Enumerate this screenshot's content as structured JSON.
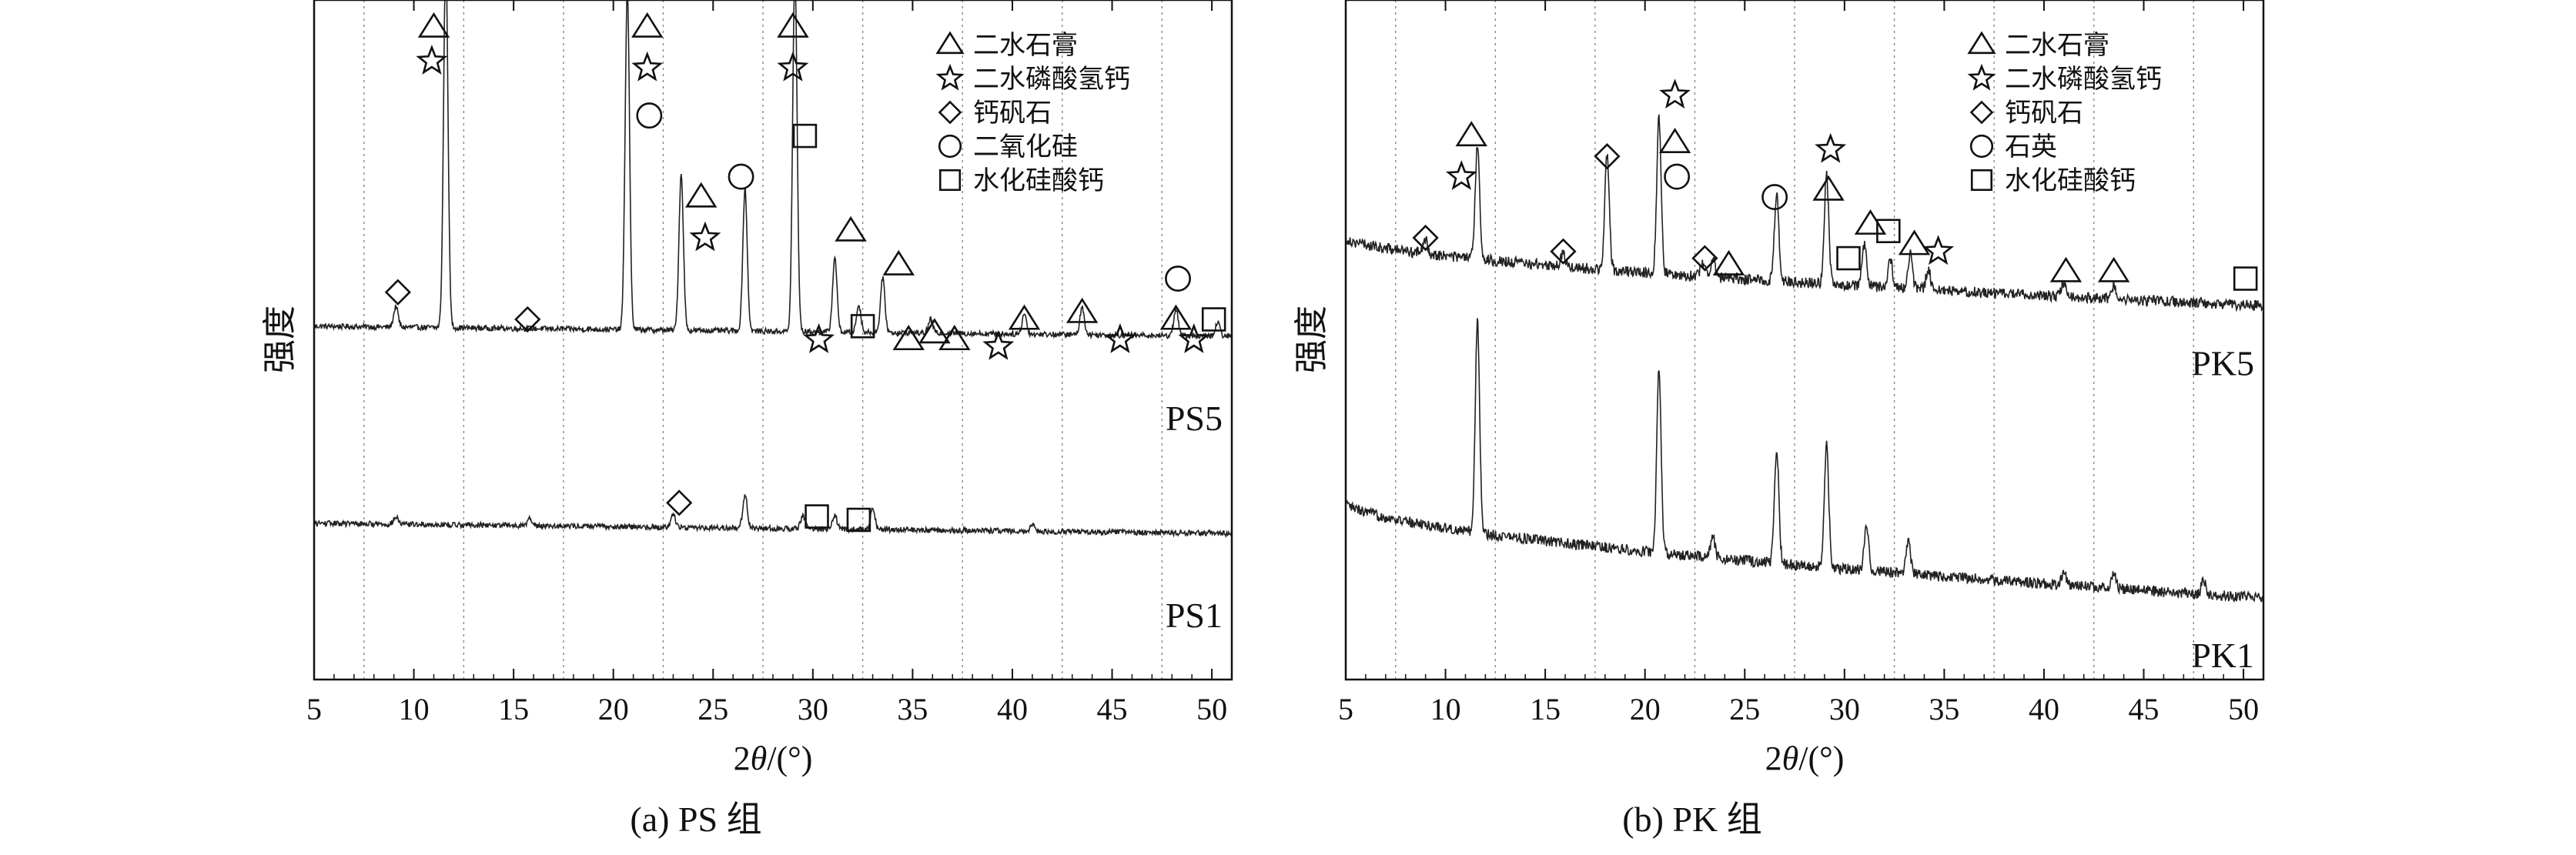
{
  "chart_data": [
    {
      "type": "line",
      "caption": "(a) PS 组",
      "xlabel_prefix": "2",
      "xlabel_theta": "θ",
      "xlabel_suffix": "/(°)",
      "ylabel": "强度",
      "xlim": [
        5,
        51
      ],
      "xticks": [
        5,
        10,
        15,
        20,
        25,
        30,
        35,
        40,
        45,
        50
      ],
      "gridlines": [
        7.5,
        12.5,
        17.5,
        22.5,
        27.5,
        32.5,
        37.5,
        42.5,
        47.5
      ],
      "grid": "vertical dotted",
      "legend_position": "top-right",
      "legend": [
        {
          "symbol": "triangle",
          "label": "二水石膏"
        },
        {
          "symbol": "star",
          "label": "二水磷酸氢钙"
        },
        {
          "symbol": "diamond",
          "label": "钙矾石"
        },
        {
          "symbol": "circle",
          "label": "二氧化硅"
        },
        {
          "symbol": "square",
          "label": "水化硅酸钙"
        }
      ],
      "series": [
        {
          "name": "PS5",
          "baseline": 0.52,
          "noise": 0.004,
          "peaks": [
            [
              9.1,
              0.03
            ],
            [
              11.6,
              0.55
            ],
            [
              20.7,
              0.5
            ],
            [
              23.4,
              0.23
            ],
            [
              26.6,
              0.21
            ],
            [
              29.1,
              0.53
            ],
            [
              31.1,
              0.11
            ],
            [
              32.3,
              0.04
            ],
            [
              33.5,
              0.08
            ],
            [
              35.9,
              0.02
            ],
            [
              40.6,
              0.03
            ],
            [
              43.5,
              0.04
            ],
            [
              48.2,
              0.04
            ],
            [
              50.3,
              0.02
            ]
          ],
          "markers": [
            {
              "symbol": "triangle",
              "x": 11.0,
              "y": 0.96
            },
            {
              "symbol": "star",
              "x": 10.9,
              "y": 0.91
            },
            {
              "symbol": "triangle",
              "x": 21.7,
              "y": 0.96
            },
            {
              "symbol": "star",
              "x": 21.7,
              "y": 0.9
            },
            {
              "symbol": "circle",
              "x": 21.8,
              "y": 0.83
            },
            {
              "symbol": "triangle",
              "x": 29.0,
              "y": 0.96
            },
            {
              "symbol": "star",
              "x": 29.0,
              "y": 0.9
            },
            {
              "symbol": "square",
              "x": 29.6,
              "y": 0.8
            },
            {
              "symbol": "circle",
              "x": 26.4,
              "y": 0.74
            },
            {
              "symbol": "triangle",
              "x": 24.4,
              "y": 0.71
            },
            {
              "symbol": "star",
              "x": 24.6,
              "y": 0.65
            },
            {
              "symbol": "triangle",
              "x": 31.9,
              "y": 0.66
            },
            {
              "symbol": "triangle",
              "x": 34.3,
              "y": 0.61
            },
            {
              "symbol": "diamond",
              "x": 9.2,
              "y": 0.57
            },
            {
              "symbol": "diamond",
              "x": 15.7,
              "y": 0.53
            },
            {
              "symbol": "square",
              "x": 32.5,
              "y": 0.52
            },
            {
              "symbol": "star",
              "x": 30.3,
              "y": 0.5
            },
            {
              "symbol": "triangle",
              "x": 34.8,
              "y": 0.5
            },
            {
              "symbol": "triangle",
              "x": 36.1,
              "y": 0.51
            },
            {
              "symbol": "triangle",
              "x": 37.1,
              "y": 0.5
            },
            {
              "symbol": "star",
              "x": 39.3,
              "y": 0.49
            },
            {
              "symbol": "triangle",
              "x": 40.6,
              "y": 0.53
            },
            {
              "symbol": "star",
              "x": 45.4,
              "y": 0.5
            },
            {
              "symbol": "triangle",
              "x": 43.5,
              "y": 0.54
            },
            {
              "symbol": "circle",
              "x": 48.3,
              "y": 0.59
            },
            {
              "symbol": "triangle",
              "x": 48.2,
              "y": 0.53
            },
            {
              "symbol": "square",
              "x": 50.1,
              "y": 0.53
            },
            {
              "symbol": "star",
              "x": 49.1,
              "y": 0.5
            }
          ]
        },
        {
          "name": "PS1",
          "baseline": 0.23,
          "noise": 0.004,
          "peaks": [
            [
              9.1,
              0.01
            ],
            [
              15.8,
              0.01
            ],
            [
              23.0,
              0.02
            ],
            [
              26.6,
              0.05
            ],
            [
              29.5,
              0.02
            ],
            [
              31.1,
              0.02
            ],
            [
              33.0,
              0.03
            ],
            [
              41.0,
              0.01
            ]
          ],
          "markers": [
            {
              "symbol": "diamond",
              "x": 23.3,
              "y": 0.26
            },
            {
              "symbol": "square",
              "x": 30.2,
              "y": 0.24
            },
            {
              "symbol": "square",
              "x": 32.3,
              "y": 0.235
            }
          ]
        }
      ]
    },
    {
      "type": "line",
      "caption": "(b) PK 组",
      "xlabel_prefix": "2",
      "xlabel_theta": "θ",
      "xlabel_suffix": "/(°)",
      "ylabel": "强度",
      "xlim": [
        5,
        51
      ],
      "xticks": [
        5,
        10,
        15,
        20,
        25,
        30,
        35,
        40,
        45,
        50
      ],
      "gridlines": [
        7.5,
        12.5,
        17.5,
        22.5,
        27.5,
        32.5,
        37.5,
        42.5,
        47.5
      ],
      "grid": "vertical dotted",
      "legend_position": "top-right",
      "legend": [
        {
          "symbol": "triangle",
          "label": "二水石膏"
        },
        {
          "symbol": "star",
          "label": "二水磷酸氢钙"
        },
        {
          "symbol": "diamond",
          "label": "钙矾石"
        },
        {
          "symbol": "circle",
          "label": "石英"
        },
        {
          "symbol": "square",
          "label": "水化硅酸钙"
        }
      ],
      "series": [
        {
          "name": "PK5",
          "baseline_start": 0.65,
          "baseline_end": 0.55,
          "noise": 0.008,
          "peaks": [
            [
              9.0,
              0.02
            ],
            [
              11.6,
              0.17
            ],
            [
              15.9,
              0.02
            ],
            [
              18.1,
              0.17
            ],
            [
              20.7,
              0.23
            ],
            [
              22.9,
              0.02
            ],
            [
              23.4,
              0.03
            ],
            [
              26.6,
              0.13
            ],
            [
              29.1,
              0.16
            ],
            [
              31.0,
              0.06
            ],
            [
              32.3,
              0.04
            ],
            [
              33.3,
              0.05
            ],
            [
              34.2,
              0.03
            ],
            [
              41.0,
              0.02
            ],
            [
              43.5,
              0.02
            ]
          ],
          "markers": [
            {
              "symbol": "triangle",
              "x": 11.3,
              "y": 0.8
            },
            {
              "symbol": "star",
              "x": 10.8,
              "y": 0.74
            },
            {
              "symbol": "diamond",
              "x": 9.0,
              "y": 0.65
            },
            {
              "symbol": "diamond",
              "x": 15.9,
              "y": 0.63
            },
            {
              "symbol": "diamond",
              "x": 18.1,
              "y": 0.77
            },
            {
              "symbol": "star",
              "x": 21.5,
              "y": 0.86
            },
            {
              "symbol": "triangle",
              "x": 21.5,
              "y": 0.79
            },
            {
              "symbol": "circle",
              "x": 21.6,
              "y": 0.74
            },
            {
              "symbol": "diamond",
              "x": 23.0,
              "y": 0.62
            },
            {
              "symbol": "triangle",
              "x": 24.2,
              "y": 0.61
            },
            {
              "symbol": "circle",
              "x": 26.5,
              "y": 0.71
            },
            {
              "symbol": "star",
              "x": 29.3,
              "y": 0.78
            },
            {
              "symbol": "triangle",
              "x": 29.2,
              "y": 0.72
            },
            {
              "symbol": "triangle",
              "x": 31.3,
              "y": 0.67
            },
            {
              "symbol": "square",
              "x": 32.2,
              "y": 0.66
            },
            {
              "symbol": "triangle",
              "x": 33.5,
              "y": 0.64
            },
            {
              "symbol": "square",
              "x": 30.2,
              "y": 0.62
            },
            {
              "symbol": "star",
              "x": 34.7,
              "y": 0.63
            },
            {
              "symbol": "triangle",
              "x": 41.1,
              "y": 0.6
            },
            {
              "symbol": "triangle",
              "x": 43.5,
              "y": 0.6
            },
            {
              "symbol": "square",
              "x": 50.1,
              "y": 0.59
            }
          ]
        },
        {
          "name": "PK1",
          "baseline_start": 0.26,
          "baseline_end": 0.12,
          "noise": 0.008,
          "peaks": [
            [
              11.6,
              0.31
            ],
            [
              20.7,
              0.27
            ],
            [
              23.4,
              0.03
            ],
            [
              26.6,
              0.17
            ],
            [
              29.1,
              0.18
            ],
            [
              31.1,
              0.07
            ],
            [
              33.2,
              0.05
            ],
            [
              41.0,
              0.02
            ],
            [
              43.5,
              0.02
            ],
            [
              48.0,
              0.02
            ]
          ],
          "markers": []
        }
      ]
    }
  ]
}
